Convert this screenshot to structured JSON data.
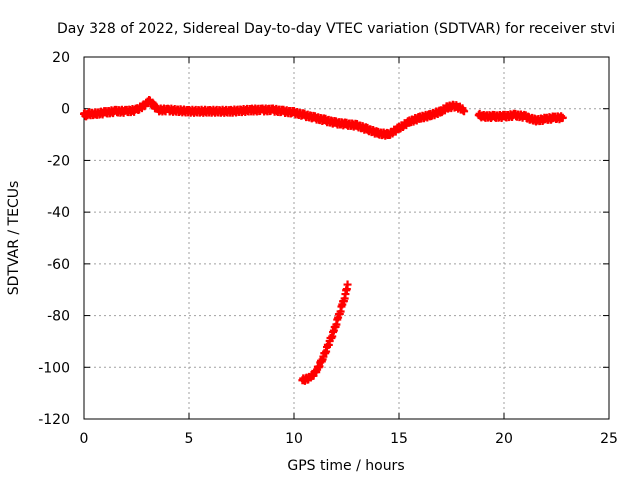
{
  "chart_data": {
    "type": "scatter",
    "title": "Day 328 of 2022, Sidereal Day-to-day VTEC variation (SDTVAR) for receiver stvi",
    "xlabel": "GPS time / hours",
    "ylabel": "SDTVAR / TECUs",
    "xlim": [
      0,
      25
    ],
    "ylim": [
      -120,
      20
    ],
    "x_ticks": [
      0,
      5,
      10,
      15,
      20,
      25
    ],
    "y_ticks": [
      -120,
      -100,
      -80,
      -60,
      -40,
      -20,
      0,
      20
    ],
    "x_tick_labels": [
      "0",
      "5",
      "10",
      "15",
      "20",
      "25"
    ],
    "y_tick_labels": [
      "-120",
      "-100",
      "-80",
      "-60",
      "-40",
      "-20",
      "0",
      "20"
    ],
    "grid": true,
    "grid_style": "dotted",
    "marker": "plus",
    "series": [
      {
        "color": "#ff0000",
        "segments": [
          {
            "x": [
              0.0,
              0.1,
              0.2,
              0.5,
              1.0,
              1.5,
              2.0,
              2.5,
              2.8,
              3.0,
              3.1,
              3.3,
              3.5,
              4.0,
              5.0,
              6.0,
              7.0,
              8.0,
              8.5,
              9.0,
              9.5,
              10.0,
              10.5,
              11.0,
              11.5,
              12.0,
              12.5,
              13.0,
              13.5,
              14.0,
              14.5,
              15.0,
              15.5,
              16.0,
              16.5,
              17.0,
              17.3,
              17.6,
              17.9,
              18.1
            ],
            "y": [
              -2,
              -3,
              -2,
              -2,
              -1.5,
              -1,
              -1,
              -0.5,
              1,
              2,
              3,
              1.5,
              -0.5,
              -0.5,
              -1,
              -1,
              -1,
              -0.5,
              -0.5,
              -0.5,
              -1,
              -1.5,
              -2.5,
              -3.5,
              -4.5,
              -5.5,
              -6,
              -6.5,
              -8,
              -9.5,
              -10,
              -7.5,
              -5,
              -3.5,
              -2.5,
              -1,
              0.5,
              1,
              0.5,
              -1
            ]
          },
          {
            "x": [
              18.8,
              19.0,
              19.5,
              20.0,
              20.5,
              21.0,
              21.3,
              21.6,
              22.0,
              22.4,
              22.8
            ],
            "y": [
              -2.5,
              -3,
              -3,
              -3,
              -2.5,
              -3,
              -4,
              -4.5,
              -4,
              -3.5,
              -3.5
            ]
          },
          {
            "x": [
              10.4,
              10.8,
              11.1,
              11.4,
              11.7,
              11.9,
              12.1,
              12.3,
              12.45,
              12.55
            ],
            "y": [
              -105,
              -104,
              -101,
              -96,
              -90,
              -86,
              -81,
              -76,
              -72,
              -68
            ]
          }
        ]
      }
    ]
  }
}
